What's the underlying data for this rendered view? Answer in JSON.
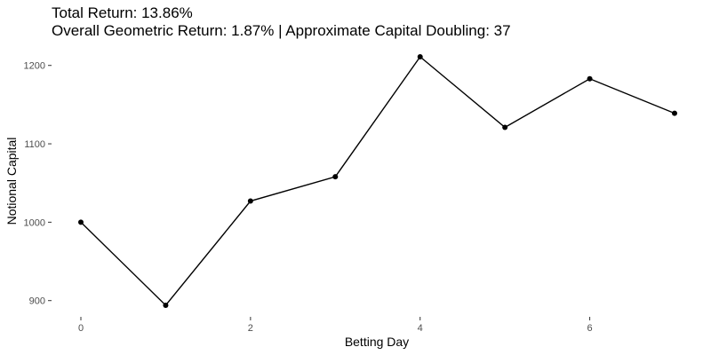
{
  "chart_data": {
    "type": "line",
    "title": "Total Return: 13.86%",
    "subtitle": "Overall Geometric Return: 1.87% | Approximate Capital Doubling: 37",
    "xlabel": "Betting Day",
    "ylabel": "Notional Capital",
    "x": [
      0,
      1,
      2,
      3,
      4,
      5,
      6,
      7
    ],
    "series": [
      {
        "values": [
          1000,
          894,
          1027,
          1058,
          1211,
          1121,
          1183,
          1139
        ]
      }
    ],
    "xlim": [
      0,
      7
    ],
    "ylim": [
      894,
      1211
    ],
    "xticks": [
      0,
      2,
      4,
      6
    ],
    "yticks": [
      900,
      1000,
      1100,
      1200
    ],
    "xtick_labels": [
      "0",
      "2",
      "4",
      "6"
    ],
    "ytick_labels": [
      "900",
      "1000",
      "1100",
      "1200"
    ],
    "grid": false,
    "legend": "none",
    "line_color": "#000000",
    "point_color": "#000000",
    "tick_color": "#333333",
    "tick_label_color": "#4d4d4d"
  }
}
